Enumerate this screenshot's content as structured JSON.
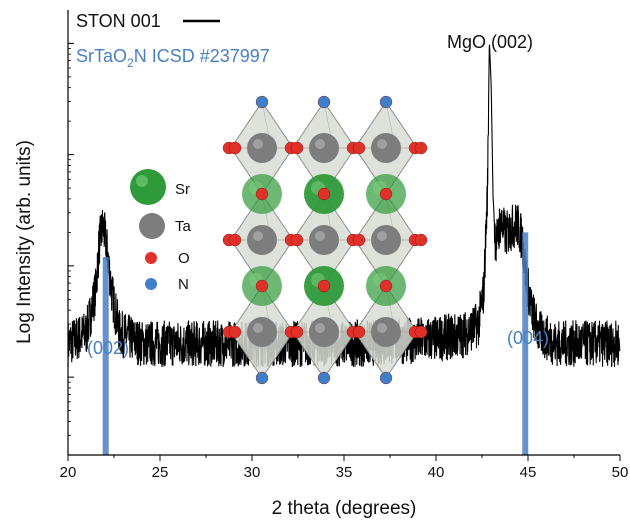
{
  "chart_data": {
    "type": "line",
    "xlabel": "2 theta (degrees)",
    "ylabel": "Log Intensity (arb. units)",
    "xlim": [
      20,
      50
    ],
    "x_ticks": [
      "20",
      "25",
      "30",
      "35",
      "40",
      "45",
      "50"
    ],
    "y_scale": "log",
    "y_range_log10": [
      0.3,
      4.3
    ],
    "y_major_ticks_log10": [
      1,
      2,
      3,
      4
    ],
    "y_tick_labels_shown": false,
    "grid": false,
    "legend_position": "top-left",
    "colors": {
      "measured": "#000000",
      "reference": "#4a7fc1"
    },
    "series": [
      {
        "name": "STON 001",
        "color": "#000000",
        "x": [
          20.0,
          21.0,
          21.5,
          21.7,
          21.9,
          22.1,
          22.4,
          22.8,
          24.0,
          30.0,
          36.0,
          40.0,
          41.5,
          42.3,
          42.6,
          42.8,
          42.9,
          43.0,
          43.1,
          43.25,
          43.5,
          43.8,
          44.1,
          44.4,
          44.7,
          44.9,
          45.2,
          45.6,
          46.5,
          50.0
        ],
        "y": [
          20,
          25,
          60,
          160,
          230,
          150,
          55,
          25,
          20,
          20,
          20,
          22,
          24,
          30,
          60,
          500,
          10000,
          4000,
          400,
          150,
          250,
          190,
          220,
          240,
          170,
          80,
          40,
          25,
          20,
          20
        ]
      },
      {
        "name": "SrTaO2N ICSD #237997",
        "type": "bar",
        "color": "#4a7fc1",
        "x": [
          22.05,
          44.85
        ],
        "y": [
          120,
          200
        ]
      }
    ],
    "legend": {
      "line_label": "STON 001",
      "ref_label_main": "SrTaO",
      "ref_label_sub": "2",
      "ref_label_tail": "N ICSD #237997"
    },
    "annotations": [
      {
        "text": "MgO (002)",
        "x": 43.0,
        "color": "#111111"
      },
      {
        "text": "(002)",
        "x": 22.0,
        "color": "#4a7fc1"
      },
      {
        "text": "(004)",
        "x": 44.7,
        "color": "#4a7fc1"
      }
    ],
    "inset": {
      "description_labels": [
        {
          "text": "Sr",
          "color": "#1f9a35"
        },
        {
          "text": "Ta",
          "color": "#6e6e6e"
        },
        {
          "text": "O",
          "color": "#e0302a"
        },
        {
          "text": "N",
          "color": "#3f7ec8"
        }
      ]
    }
  }
}
